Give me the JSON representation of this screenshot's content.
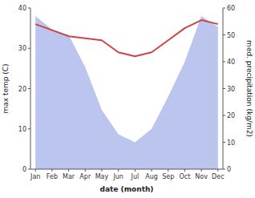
{
  "chart_data": {
    "type": "line",
    "categories": [
      "Jan",
      "Feb",
      "Mar",
      "Apr",
      "May",
      "Jun",
      "Jul",
      "Aug",
      "Sep",
      "Oct",
      "Nov",
      "Dec"
    ],
    "series": [
      {
        "type": "area",
        "axis": "y2",
        "color": "#bcc5ee",
        "values": [
          57,
          52,
          50,
          38,
          22,
          13,
          10,
          15,
          27,
          40,
          57,
          53
        ]
      },
      {
        "type": "line",
        "color": "#cc4444",
        "values": [
          36,
          34.5,
          33,
          32.5,
          32,
          29,
          28,
          29,
          32,
          35,
          37,
          36
        ]
      }
    ],
    "ylim": [
      0,
      40
    ],
    "yticks": [
      0,
      10,
      20,
      30,
      40
    ],
    "y2lim": [
      0,
      60
    ],
    "y2ticks": [
      0,
      10,
      20,
      30,
      40,
      50,
      60
    ],
    "xlabel": "date (month)",
    "ylabel": "max temp (C)",
    "y2label": "med. precipitation (kg/m2)",
    "grid": false
  }
}
